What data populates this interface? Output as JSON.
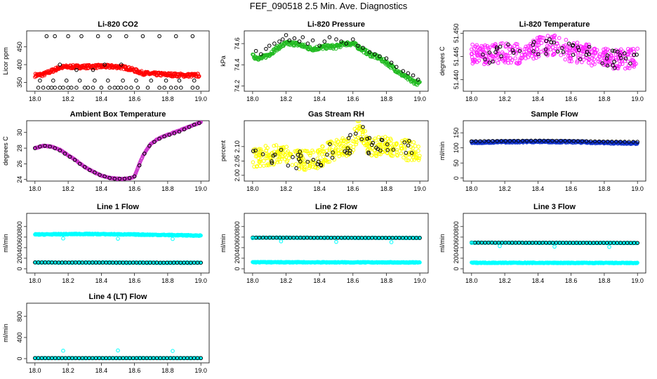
{
  "figure": {
    "title": "FEF_090518  2.5 Min. Ave. Diagnostics"
  },
  "colors": {
    "co2": "#ff0000",
    "pressure": "#22bb22",
    "temperature": "#ff22ff",
    "ambient": "#cc33cc",
    "rh": "#ffff00",
    "sample": "#1133cc",
    "cyan": "#00ffff",
    "black": "#000000"
  },
  "chart_data": [
    {
      "type": "scatter",
      "title": "Li-820 CO2",
      "xlabel": "",
      "ylabel": "Licor ppm",
      "xlim": [
        17.95,
        19.05
      ],
      "ylim": [
        325,
        495
      ],
      "xticks": [
        "18.0",
        "18.2",
        "18.4",
        "18.6",
        "18.8",
        "19.0"
      ],
      "yticks": [
        "350",
        "400",
        "450"
      ],
      "series": [
        {
          "style": "dense",
          "color_key": "co2",
          "x": [
            18.0,
            18.05,
            18.1,
            18.15,
            18.2,
            18.3,
            18.4,
            18.5,
            18.55,
            18.6,
            18.65,
            18.7,
            18.8,
            18.9,
            18.99
          ],
          "y": [
            370,
            372,
            382,
            392,
            394,
            394,
            395,
            394,
            391,
            384,
            376,
            374,
            372,
            370,
            370
          ],
          "spread": 5
        },
        {
          "style": "open",
          "color_key": "black",
          "x": [
            18.02,
            18.05,
            18.08,
            18.1,
            18.12,
            18.15,
            18.17,
            18.2,
            18.22,
            18.25,
            18.3,
            18.32,
            18.35,
            18.4,
            18.45,
            18.48,
            18.5,
            18.52,
            18.55,
            18.58,
            18.62,
            18.68,
            18.75,
            18.78,
            18.82,
            18.85,
            18.88,
            18.95,
            18.98,
            18.07,
            18.12,
            18.2,
            18.28,
            18.38,
            18.45,
            18.55,
            18.65,
            18.75,
            18.85,
            18.95,
            18.03,
            18.11,
            18.19,
            18.27,
            18.36,
            18.44,
            18.53,
            18.61,
            18.7,
            18.79,
            18.87,
            18.96,
            18.15,
            18.42,
            18.52,
            18.25,
            18.35
          ],
          "y": [
            335,
            335,
            335,
            335,
            335,
            335,
            335,
            335,
            335,
            335,
            335,
            335,
            335,
            335,
            335,
            335,
            335,
            335,
            335,
            335,
            335,
            335,
            335,
            335,
            335,
            335,
            335,
            335,
            335,
            480,
            480,
            480,
            480,
            480,
            480,
            480,
            480,
            480,
            480,
            480,
            355,
            355,
            355,
            355,
            355,
            355,
            355,
            355,
            355,
            355,
            355,
            355,
            400,
            400,
            400,
            385,
            385
          ]
        }
      ]
    },
    {
      "type": "scatter",
      "title": "Li-820 Pressure",
      "xlabel": "",
      "ylabel": "kPa",
      "xlim": [
        17.95,
        19.05
      ],
      "ylim": [
        74.15,
        74.72
      ],
      "xticks": [
        "18.0",
        "18.2",
        "18.4",
        "18.6",
        "18.8",
        "19.0"
      ],
      "yticks": [
        "74.2",
        "74.4",
        "74.6"
      ],
      "series": [
        {
          "style": "dense",
          "color_key": "pressure",
          "x": [
            18.0,
            18.05,
            18.1,
            18.15,
            18.2,
            18.25,
            18.3,
            18.35,
            18.4,
            18.45,
            18.5,
            18.55,
            18.6,
            18.65,
            18.7,
            18.75,
            18.8,
            18.85,
            18.9,
            18.95,
            19.0
          ],
          "y": [
            74.48,
            74.46,
            74.5,
            74.56,
            74.6,
            74.6,
            74.58,
            74.55,
            74.56,
            74.57,
            74.57,
            74.6,
            74.6,
            74.55,
            74.5,
            74.47,
            74.42,
            74.36,
            74.3,
            74.25,
            74.22
          ],
          "spread": 0.02
        },
        {
          "style": "open",
          "color_key": "black",
          "x": [
            18.02,
            18.05,
            18.08,
            18.1,
            18.13,
            18.16,
            18.18,
            18.2,
            18.22,
            18.25,
            18.28,
            18.3,
            18.33,
            18.36,
            18.4,
            18.43,
            18.46,
            18.5,
            18.53,
            18.56,
            18.6,
            18.63,
            18.66,
            18.7,
            18.73,
            18.76,
            18.8,
            18.83,
            18.86,
            18.9,
            18.93,
            18.96,
            18.99
          ],
          "y": [
            74.53,
            74.5,
            74.55,
            74.58,
            74.6,
            74.62,
            74.64,
            74.68,
            74.63,
            74.65,
            74.62,
            74.66,
            74.6,
            74.63,
            74.58,
            74.62,
            74.66,
            74.64,
            74.62,
            74.6,
            74.64,
            74.58,
            74.56,
            74.52,
            74.5,
            74.48,
            74.46,
            74.42,
            74.38,
            74.34,
            74.32,
            74.3,
            74.26
          ]
        }
      ]
    },
    {
      "type": "scatter",
      "title": "Li-820 Temperature",
      "xlabel": "",
      "ylabel": "degrees C",
      "xlim": [
        17.95,
        19.05
      ],
      "ylim": [
        51.4375,
        51.4505
      ],
      "xticks": [
        "18.0",
        "18.2",
        "18.4",
        "18.6",
        "18.8",
        "19.0"
      ],
      "yticks": [
        "51.440",
        "51.445",
        "51.450"
      ],
      "series": [
        {
          "style": "scatter-noisy",
          "color_key": "temperature",
          "x": [
            18.0,
            18.1,
            18.2,
            18.3,
            18.4,
            18.5,
            18.6,
            18.7,
            18.8,
            18.9,
            19.0
          ],
          "y": [
            51.4455,
            51.4455,
            51.4458,
            51.4455,
            51.447,
            51.4475,
            51.446,
            51.4455,
            51.4445,
            51.4445,
            51.4445
          ],
          "spread": 0.0022
        },
        {
          "style": "open-noisy",
          "color_key": "black",
          "x": [
            18.0,
            18.1,
            18.2,
            18.3,
            18.4,
            18.5,
            18.6,
            18.7,
            18.8,
            18.9,
            19.0
          ],
          "y": [
            51.4455,
            51.4455,
            51.4458,
            51.4455,
            51.447,
            51.4475,
            51.446,
            51.4455,
            51.4445,
            51.4445,
            51.4445
          ],
          "spread": 0.002
        }
      ]
    },
    {
      "type": "scatter",
      "title": "Ambient Box Temperature",
      "xlabel": "",
      "ylabel": "degrees C",
      "xlim": [
        17.95,
        19.05
      ],
      "ylim": [
        23.8,
        31.5
      ],
      "xticks": [
        "18.0",
        "18.2",
        "18.4",
        "18.6",
        "18.8",
        "19.0"
      ],
      "yticks": [
        "24",
        "26",
        "28",
        "30"
      ],
      "series": [
        {
          "style": "dense",
          "color_key": "ambient",
          "x": [
            18.0,
            18.05,
            18.1,
            18.15,
            18.2,
            18.25,
            18.3,
            18.35,
            18.4,
            18.45,
            18.5,
            18.55,
            18.58,
            18.6,
            18.62,
            18.65,
            18.68,
            18.7,
            18.75,
            18.8,
            18.85,
            18.9,
            18.95,
            19.0
          ],
          "y": [
            28.0,
            28.3,
            28.2,
            27.8,
            27.1,
            26.4,
            25.6,
            25.0,
            24.5,
            24.2,
            24.1,
            24.1,
            24.2,
            24.4,
            25.5,
            27.0,
            28.0,
            28.6,
            29.3,
            29.7,
            30.1,
            30.5,
            30.9,
            31.3
          ],
          "spread": 0.05
        },
        {
          "style": "open",
          "color_key": "black",
          "x": [
            18.0,
            18.03,
            18.06,
            18.09,
            18.12,
            18.15,
            18.18,
            18.21,
            18.24,
            18.27,
            18.3,
            18.33,
            18.36,
            18.39,
            18.42,
            18.45,
            18.48,
            18.51,
            18.54,
            18.57,
            18.6,
            18.63,
            18.66,
            18.69,
            18.72,
            18.75,
            18.78,
            18.81,
            18.84,
            18.87,
            18.9,
            18.93,
            18.96,
            18.99
          ],
          "y": [
            28.0,
            28.2,
            28.3,
            28.2,
            28.0,
            27.7,
            27.3,
            26.9,
            26.5,
            26.0,
            25.6,
            25.2,
            24.9,
            24.6,
            24.4,
            24.2,
            24.1,
            24.1,
            24.1,
            24.2,
            24.4,
            25.8,
            27.3,
            28.3,
            28.8,
            29.2,
            29.5,
            29.7,
            29.9,
            30.1,
            30.4,
            30.7,
            31.0,
            31.2
          ]
        }
      ]
    },
    {
      "type": "scatter",
      "title": "Gas Stream RH",
      "xlabel": "",
      "ylabel": "percent",
      "xlim": [
        17.95,
        19.05
      ],
      "ylim": [
        1.98,
        2.19
      ],
      "xticks": [
        "18.0",
        "18.2",
        "18.4",
        "18.6",
        "18.8",
        "19.0"
      ],
      "yticks": [
        "2.00",
        "2.05",
        "2.10"
      ],
      "series": [
        {
          "style": "scatter-noisy",
          "color_key": "rh",
          "x": [
            18.0,
            18.1,
            18.2,
            18.3,
            18.4,
            18.45,
            18.5,
            18.55,
            18.6,
            18.63,
            18.66,
            18.7,
            18.8,
            18.9,
            19.0
          ],
          "y": [
            2.06,
            2.07,
            2.07,
            2.05,
            2.06,
            2.08,
            2.09,
            2.1,
            2.11,
            2.16,
            2.14,
            2.1,
            2.1,
            2.09,
            2.08
          ],
          "spread": 0.035
        },
        {
          "style": "open-noisy",
          "color_key": "black",
          "x": [
            18.0,
            18.1,
            18.2,
            18.3,
            18.4,
            18.45,
            18.5,
            18.55,
            18.6,
            18.63,
            18.66,
            18.7,
            18.8,
            18.9,
            19.0
          ],
          "y": [
            2.06,
            2.07,
            2.07,
            2.05,
            2.06,
            2.08,
            2.09,
            2.1,
            2.11,
            2.16,
            2.14,
            2.1,
            2.1,
            2.09,
            2.08
          ],
          "spread": 0.035
        }
      ]
    },
    {
      "type": "scatter",
      "title": "Sample Flow",
      "xlabel": "",
      "ylabel": "ml/min",
      "xlim": [
        17.95,
        19.05
      ],
      "ylim": [
        -10,
        190
      ],
      "xticks": [
        "18.0",
        "18.2",
        "18.4",
        "18.6",
        "18.8",
        "19.0"
      ],
      "yticks": [
        "0",
        "50",
        "100",
        "150"
      ],
      "series": [
        {
          "style": "dense",
          "color_key": "sample",
          "x": [
            18.0,
            18.2,
            18.4,
            18.6,
            18.8,
            19.0
          ],
          "y": [
            118,
            120,
            121,
            120,
            117,
            115
          ],
          "spread": 3
        },
        {
          "style": "open-line",
          "color_key": "black",
          "x": [
            18.0,
            18.2,
            18.4,
            18.6,
            18.8,
            19.0
          ],
          "y": [
            122,
            123,
            124,
            123,
            121,
            120
          ],
          "n": 40
        }
      ]
    },
    {
      "type": "scatter",
      "title": "Line 1 Flow",
      "xlabel": "",
      "ylabel": "ml/min",
      "xlim": [
        17.95,
        19.05
      ],
      "ylim": [
        -80,
        1050
      ],
      "xticks": [
        "18.0",
        "18.2",
        "18.4",
        "18.6",
        "18.8",
        "19.0"
      ],
      "yticks": [
        "0",
        "200",
        "400",
        "600",
        "800"
      ],
      "series": [
        {
          "style": "dense",
          "color_key": "cyan",
          "x": [
            18.0,
            18.3,
            18.6,
            19.0
          ],
          "y": [
            650,
            660,
            650,
            630
          ],
          "spread": 10
        },
        {
          "style": "dense",
          "color_key": "cyan",
          "x": [
            18.0,
            19.0
          ],
          "y": [
            120,
            115
          ],
          "spread": 8
        },
        {
          "style": "open-line",
          "color_key": "black",
          "x": [
            18.0,
            19.0
          ],
          "y": [
            120,
            115
          ],
          "n": 50
        },
        {
          "style": "open",
          "color_key": "cyan",
          "x": [
            18.17,
            18.5,
            18.83
          ],
          "y": [
            575,
            570,
            565
          ]
        }
      ]
    },
    {
      "type": "scatter",
      "title": "Line 2 Flow",
      "xlabel": "",
      "ylabel": "ml/min",
      "xlim": [
        17.95,
        19.05
      ],
      "ylim": [
        -80,
        1050
      ],
      "xticks": [
        "18.0",
        "18.2",
        "18.4",
        "18.6",
        "18.8",
        "19.0"
      ],
      "yticks": [
        "0",
        "200",
        "400",
        "600",
        "800"
      ],
      "series": [
        {
          "style": "dense",
          "color_key": "cyan",
          "x": [
            18.0,
            19.0
          ],
          "y": [
            125,
            120
          ],
          "spread": 8
        },
        {
          "style": "dense",
          "color_key": "cyan",
          "x": [
            18.0,
            19.0
          ],
          "y": [
            590,
            585
          ],
          "spread": 6
        },
        {
          "style": "open-line",
          "color_key": "black",
          "x": [
            18.0,
            19.0
          ],
          "y": [
            590,
            585
          ],
          "n": 50
        },
        {
          "style": "open",
          "color_key": "cyan",
          "x": [
            18.0,
            18.17,
            18.5,
            18.83
          ],
          "y": [
            580,
            520,
            510,
            505
          ]
        }
      ]
    },
    {
      "type": "scatter",
      "title": "Line 3 Flow",
      "xlabel": "",
      "ylabel": "ml/min",
      "xlim": [
        17.95,
        19.05
      ],
      "ylim": [
        -80,
        1050
      ],
      "xticks": [
        "18.0",
        "18.2",
        "18.4",
        "18.6",
        "18.8",
        "19.0"
      ],
      "yticks": [
        "0",
        "200",
        "400",
        "600",
        "800"
      ],
      "series": [
        {
          "style": "dense",
          "color_key": "cyan",
          "x": [
            18.0,
            19.0
          ],
          "y": [
            115,
            110
          ],
          "spread": 8
        },
        {
          "style": "dense",
          "color_key": "cyan",
          "x": [
            18.0,
            19.0
          ],
          "y": [
            495,
            490
          ],
          "spread": 6
        },
        {
          "style": "open-line",
          "color_key": "black",
          "x": [
            18.0,
            19.0
          ],
          "y": [
            495,
            490
          ],
          "n": 50
        },
        {
          "style": "open",
          "color_key": "cyan",
          "x": [
            18.0,
            18.17,
            18.5,
            18.83
          ],
          "y": [
            490,
            430,
            420,
            415
          ]
        }
      ]
    },
    {
      "type": "scatter",
      "title": "Line 4 (LT) Flow",
      "xlabel": "",
      "ylabel": "ml/min",
      "xlim": [
        17.95,
        19.05
      ],
      "ylim": [
        -80,
        1050
      ],
      "xticks": [
        "18.0",
        "18.2",
        "18.4",
        "18.6",
        "18.8",
        "19.0"
      ],
      "yticks": [
        "0",
        "400",
        "800"
      ],
      "series": [
        {
          "style": "dense",
          "color_key": "cyan",
          "x": [
            18.0,
            19.0
          ],
          "y": [
            10,
            10
          ],
          "spread": 4
        },
        {
          "style": "open-line",
          "color_key": "black",
          "x": [
            18.0,
            19.0
          ],
          "y": [
            10,
            10
          ],
          "n": 50
        },
        {
          "style": "open",
          "color_key": "cyan",
          "x": [
            18.17,
            18.5,
            18.83
          ],
          "y": [
            150,
            155,
            145
          ]
        }
      ]
    }
  ]
}
